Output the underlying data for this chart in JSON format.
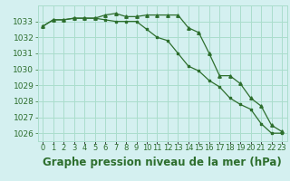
{
  "title": "Graphe pression niveau de la mer (hPa)",
  "background_color": "#d4f0f0",
  "grid_color": "#aaddcc",
  "line_color": "#2d6e2d",
  "x_labels": [
    "0",
    "1",
    "2",
    "3",
    "4",
    "5",
    "6",
    "7",
    "8",
    "9",
    "10",
    "11",
    "12",
    "13",
    "14",
    "15",
    "16",
    "17",
    "18",
    "19",
    "20",
    "21",
    "22",
    "23"
  ],
  "hours": [
    0,
    1,
    2,
    3,
    4,
    5,
    6,
    7,
    8,
    9,
    10,
    11,
    12,
    13,
    14,
    15,
    16,
    17,
    18,
    19,
    20,
    21,
    22,
    23
  ],
  "series1": [
    1032.7,
    1033.1,
    1033.1,
    1033.2,
    1033.2,
    1033.2,
    1033.4,
    1033.5,
    1033.3,
    1033.3,
    1033.4,
    1033.4,
    1033.4,
    1033.4,
    1032.6,
    1032.3,
    1031.0,
    1029.6,
    1029.6,
    1029.1,
    1028.2,
    1027.7,
    1026.5,
    1026.1
  ],
  "series2": [
    1032.7,
    1033.1,
    1033.1,
    1033.2,
    1033.2,
    1033.2,
    1033.1,
    1033.0,
    1033.0,
    1033.0,
    1032.5,
    1032.0,
    1031.8,
    1031.0,
    1030.2,
    1029.9,
    1029.3,
    1028.9,
    1028.2,
    1027.8,
    1027.5,
    1026.6,
    1026.0,
    1026.0
  ],
  "ylim": [
    1025.5,
    1034.0
  ],
  "yticks": [
    1026,
    1027,
    1028,
    1029,
    1030,
    1031,
    1032,
    1033
  ],
  "title_fontsize": 8.5,
  "tick_fontsize": 6.5,
  "xlabel_fontsize": 6
}
